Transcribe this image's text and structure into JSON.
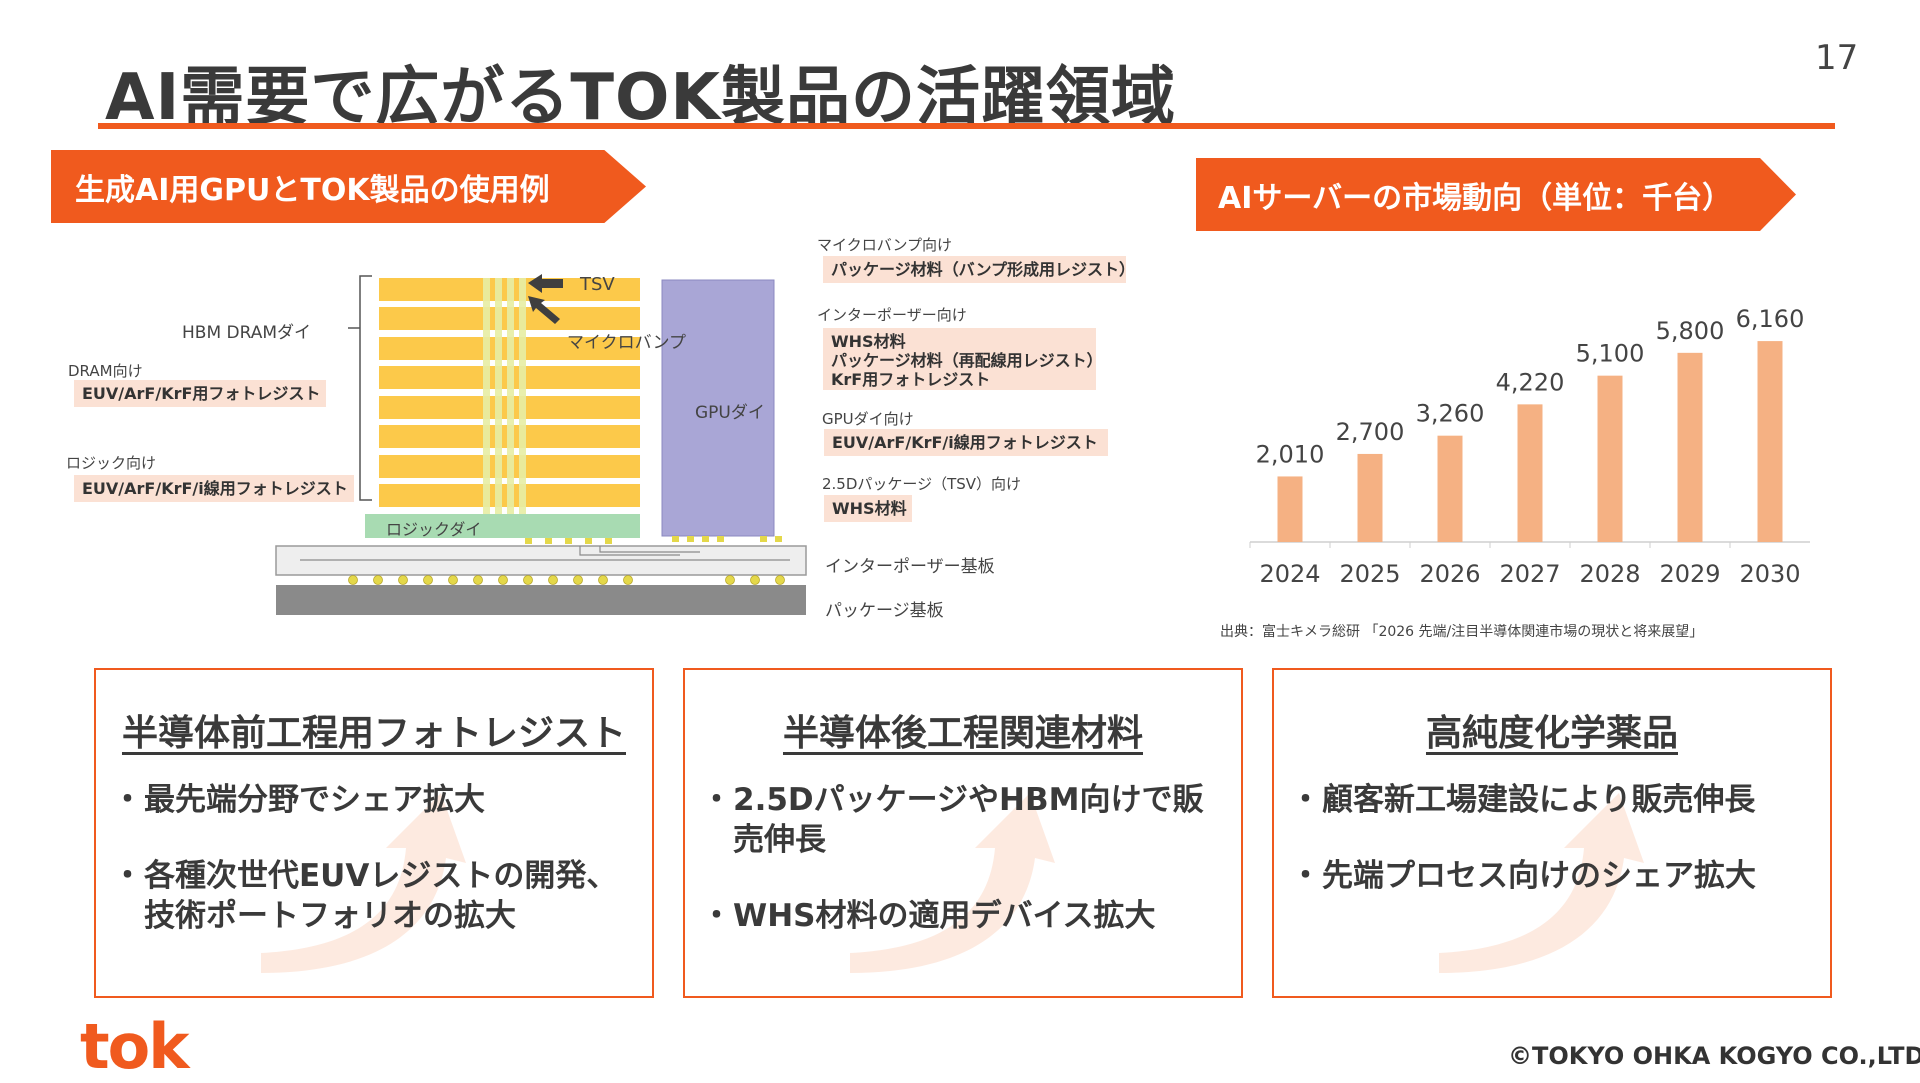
{
  "page": {
    "title": "AI需要で広がるTOK製品の活躍領域",
    "page_number": "17"
  },
  "left_panel": {
    "banner": "生成AI用GPUとTOK製品の使用例",
    "hbm_label": "HBM DRAMダイ",
    "tsv_label": "TSV",
    "microbump_label": "マイクロバンプ",
    "gpu_die_label": "GPUダイ",
    "logic_die_label": "ロジックダイ",
    "interposer_label": "インターポーザー基板",
    "package_label": "パッケージ基板",
    "dram_for": {
      "label": "DRAM向け",
      "product": "EUV/ArF/KrF用フォトレジスト"
    },
    "logic_for": {
      "label": "ロジック向け",
      "product": "EUV/ArF/KrF/i線用フォトレジスト"
    },
    "microbump_for": {
      "label": "マイクロバンプ向け",
      "product": "パッケージ材料（バンプ形成用レジスト）"
    },
    "interposer_for": {
      "label": "インターポーザー向け",
      "products": [
        "WHS材料",
        "パッケージ材料（再配線用レジスト）",
        "KrF用フォトレジスト"
      ]
    },
    "gpu_for": {
      "label": "GPUダイ向け",
      "product": "EUV/ArF/KrF/i線用フォトレジスト"
    },
    "package_for": {
      "label": "2.5Dパッケージ（TSV）向け",
      "product": "WHS材料"
    }
  },
  "right_panel": {
    "banner": "AIサーバーの市場動向（単位：千台）",
    "source": "出典：富士キメラ総研 「2026 先端/注目半導体関連市場の現状と将来展望」"
  },
  "chart_data": {
    "type": "bar",
    "title": "AIサーバーの市場動向（単位：千台）",
    "categories": [
      "2024",
      "2025",
      "2026",
      "2027",
      "2028",
      "2029",
      "2030"
    ],
    "values": [
      2010,
      2700,
      3260,
      4220,
      5100,
      5800,
      6160
    ],
    "value_labels": [
      "2,010",
      "2,700",
      "3,260",
      "4,220",
      "5,100",
      "5,800",
      "6,160"
    ],
    "ylim": [
      0,
      6500
    ],
    "grid": false,
    "bar_color": "#f5b183"
  },
  "cards": [
    {
      "title": "半導体前工程用フォトレジスト",
      "bullets": [
        "最先端分野でシェア拡大",
        "各種次世代EUVレジストの開発、技術ポートフォリオの拡大"
      ]
    },
    {
      "title": "半導体後工程関連材料",
      "bullets": [
        "2.5DパッケージやHBM向けで販売伸長",
        "WHS材料の適用デバイス拡大"
      ]
    },
    {
      "title": "高純度化学薬品",
      "bullets": [
        "顧客新工場建設により販売伸長",
        "先端プロセス向けのシェア拡大"
      ]
    }
  ],
  "footer": {
    "logo": "tok",
    "copyright": "©TOKYO OHKA KOGYO CO.,LTD."
  },
  "colors": {
    "accent": "#f05a1e",
    "box_fill": "#fbe1d4",
    "hbm_layer": "#fcc94a",
    "gpu_die": "#a9a6d6",
    "logic_die": "#a8dbb2"
  }
}
